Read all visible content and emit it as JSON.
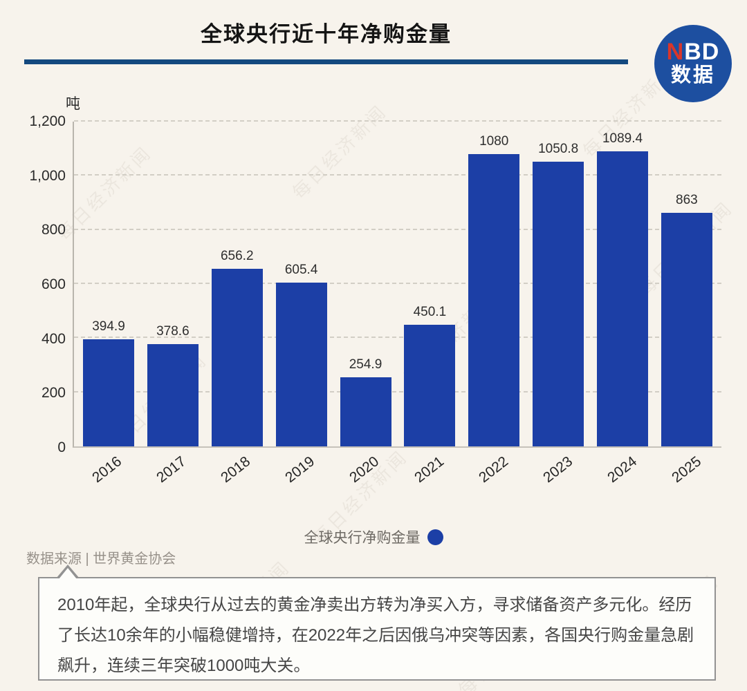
{
  "header": {
    "title": "全球央行近十年净购金量",
    "rule_color": "#14497f",
    "logo": {
      "nbd_red": "N",
      "nbd_rest": "BD",
      "line2": "数据",
      "bg_color": "#1d4fa0",
      "accent_color": "#d9362a"
    }
  },
  "chart_data": {
    "type": "bar",
    "title": "全球央行近十年净购金量",
    "unit_label": "吨",
    "categories": [
      "2016",
      "2017",
      "2018",
      "2019",
      "2020",
      "2021",
      "2022",
      "2023",
      "2024",
      "2025"
    ],
    "values": [
      394.9,
      378.6,
      656.2,
      605.4,
      254.9,
      450.1,
      1080,
      1050.8,
      1089.4,
      863
    ],
    "value_labels": [
      "394.9",
      "378.6",
      "656.2",
      "605.4",
      "254.9",
      "450.1",
      "1080",
      "1050.8",
      "1089.4",
      "863"
    ],
    "ylim": [
      0,
      1200
    ],
    "yticks": [
      {
        "value": 0,
        "label": "0"
      },
      {
        "value": 200,
        "label": "200"
      },
      {
        "value": 400,
        "label": "400"
      },
      {
        "value": 600,
        "label": "600"
      },
      {
        "value": 800,
        "label": "800"
      },
      {
        "value": 1000,
        "label": "1,000"
      },
      {
        "value": 1200,
        "label": "1,200"
      }
    ],
    "grid": "dashed-horizontal",
    "bar_color": "#1c3fa6",
    "legend": {
      "label": "全球央行净购金量",
      "marker": "circle",
      "marker_color": "#1c3fa6",
      "position": "bottom-center"
    }
  },
  "source": {
    "text": "数据来源 | 世界黄金协会"
  },
  "note": {
    "text": "2010年起，全球央行从过去的黄金净卖出方转为净买入方，寻求储备资产多元化。经历了长达10余年的小幅稳健增持，在2022年之后因俄乌冲突等因素，各国央行购金量急剧飙升，连续三年突破1000吨大关。"
  },
  "watermark": {
    "text": "每日经济新闻"
  }
}
